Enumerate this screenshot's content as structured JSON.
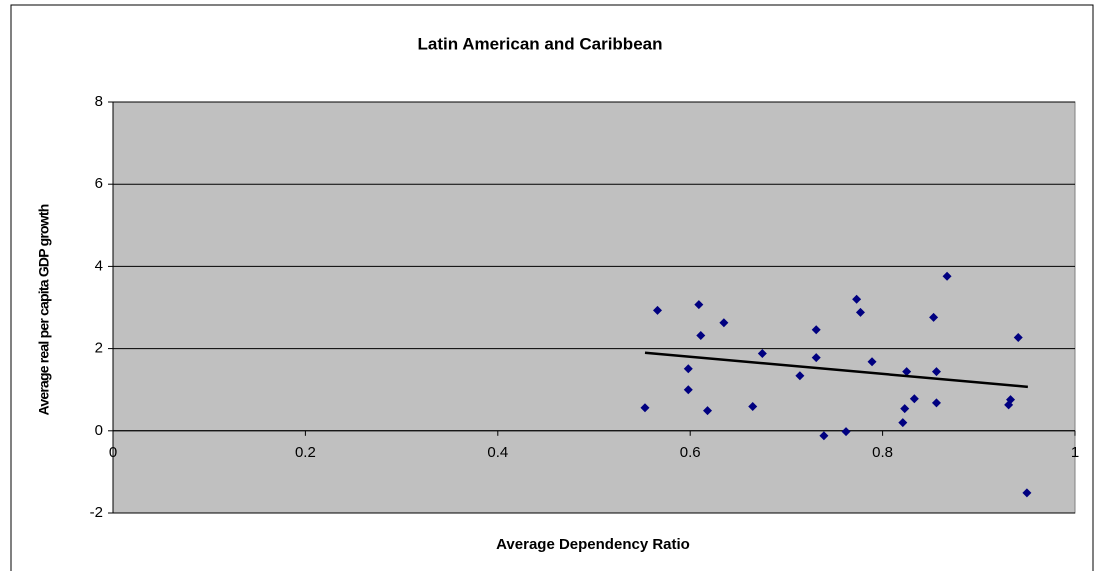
{
  "chart_data": {
    "type": "scatter",
    "title": "Latin American and Caribbean",
    "x_label": "Average Dependency Ratio",
    "y_label": "Average real per capita GDP growth",
    "xlim": [
      0,
      1
    ],
    "ylim": [
      -2,
      8
    ],
    "xticks": [
      0,
      0.2,
      0.4,
      0.6,
      0.8,
      1
    ],
    "yticks": [
      -2,
      0,
      2,
      4,
      6,
      8
    ],
    "grid": true,
    "series": [
      {
        "color": "#000080",
        "x": [
          0.553,
          0.566,
          0.598,
          0.598,
          0.609,
          0.611,
          0.618,
          0.635,
          0.665,
          0.675,
          0.714,
          0.731,
          0.731,
          0.739,
          0.762,
          0.773,
          0.777,
          0.789,
          0.821,
          0.823,
          0.825,
          0.833,
          0.853,
          0.856,
          0.856,
          0.867,
          0.931,
          0.933,
          0.941,
          0.95
        ],
        "values": [
          0.56,
          2.93,
          1.51,
          1.0,
          3.07,
          2.32,
          0.49,
          2.63,
          0.59,
          1.88,
          1.34,
          2.46,
          1.78,
          -0.12,
          -0.02,
          3.2,
          2.88,
          1.68,
          0.2,
          0.54,
          1.44,
          0.78,
          2.76,
          1.44,
          0.68,
          3.76,
          0.63,
          0.76,
          2.27,
          -1.51
        ]
      }
    ],
    "trendline": {
      "color": "#000000",
      "x": [
        0.553,
        0.951
      ],
      "values": [
        1.9,
        1.07
      ]
    }
  }
}
